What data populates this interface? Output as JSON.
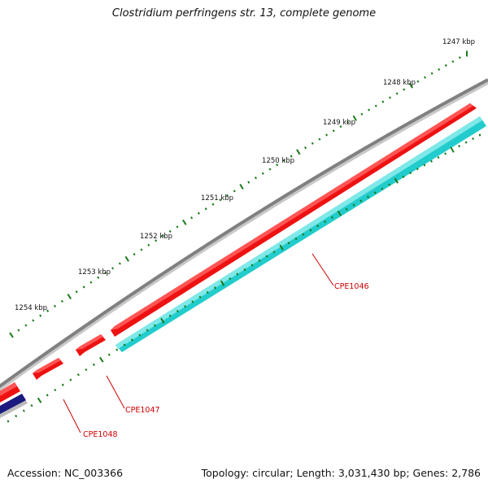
{
  "title": "Clostridium perfringens str. 13, complete genome",
  "footer": {
    "accession": "Accession: NC_003366",
    "summary": "Topology: circular; Length: 3,031,430 bp; Genes: 2,786"
  },
  "colors": {
    "backbone": "#808080",
    "forward_gene": "#ee1111",
    "reverse_gene": "#22cccc",
    "navy_gene": "#1a1a80",
    "tick": "#1a7a1a",
    "gene_label": "#cc0000"
  },
  "scale_labels": [
    "1247 kbp",
    "1248 kbp",
    "1249 kbp",
    "1250 kbp",
    "1251 kbp",
    "1252 kbp",
    "1253 kbp",
    "1254 kbp"
  ],
  "gene_labels": [
    "CPE1046",
    "CPE1047",
    "CPE1048"
  ]
}
